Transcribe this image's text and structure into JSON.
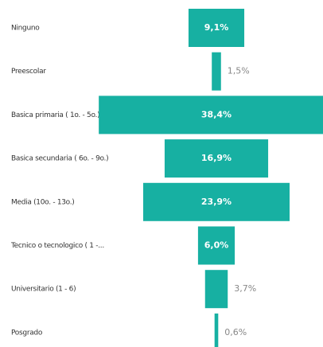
{
  "chart_data": {
    "type": "funnel",
    "categories": [
      "Ninguno",
      "Preescolar",
      "Basica primaria ( 1o. - 5o.)",
      "Basica secundaria ( 6o. - 9o.)",
      "Media (10o. - 13o.)",
      "Tecnico o tecnologico ( 1 -...",
      "Universitario (1 - 6)",
      "Posgrado"
    ],
    "values": [
      9.1,
      1.5,
      38.4,
      16.9,
      23.9,
      6.0,
      3.7,
      0.6
    ],
    "value_labels": [
      "9,1%",
      "1,5%",
      "38,4%",
      "16,9%",
      "23,9%",
      "6,0%",
      "3,7%",
      "0,6%"
    ],
    "color": "#17b0a2"
  }
}
